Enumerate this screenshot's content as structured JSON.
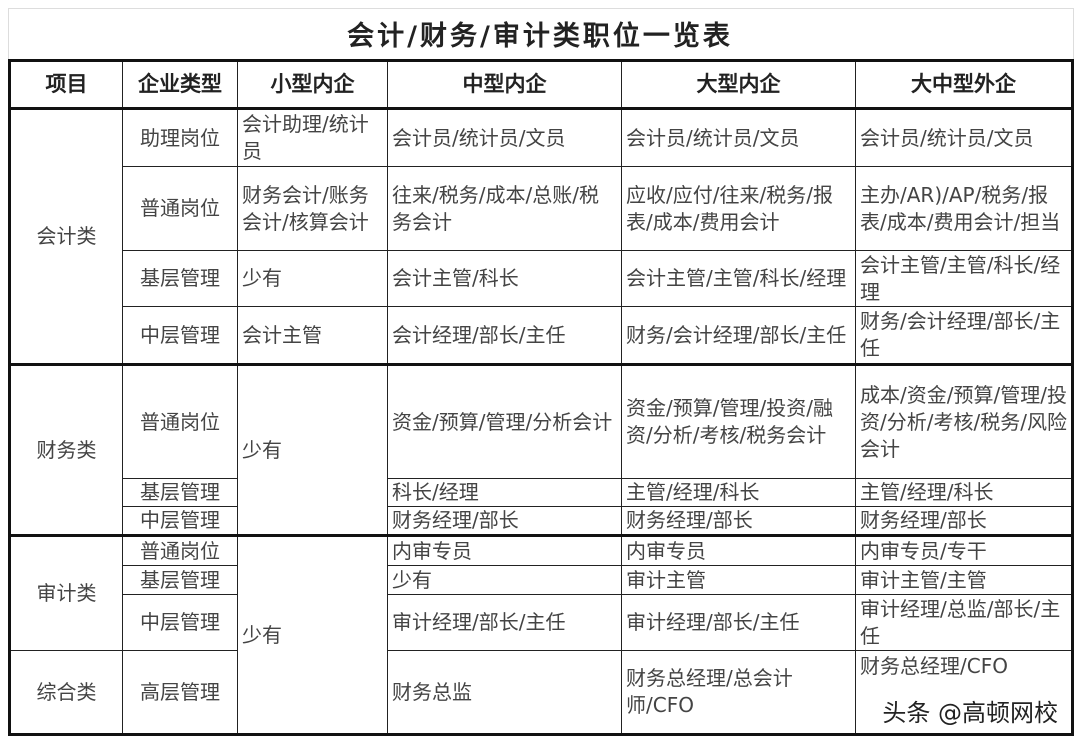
{
  "title": "会计/财务/审计类职位一览表",
  "headers": [
    "项目",
    "企业类型",
    "小型内企",
    "中型内企",
    "大型内企",
    "大中型外企"
  ],
  "categories": {
    "accounting": "会计类",
    "finance": "财务类",
    "audit": "审计类",
    "general": "综合类"
  },
  "rows": [
    {
      "type": "助理岗位",
      "small": "会计助理/统计员",
      "mid": "会计员/统计员/文员",
      "large": "会计员/统计员/文员",
      "foreign": "会计员/统计员/文员"
    },
    {
      "type": "普通岗位",
      "small": "财务会计/账务会计/核算会计",
      "mid": "往来/税务/成本/总账/税务会计",
      "large": "应收/应付/往来/税务/报表/成本/费用会计",
      "foreign": "主办/AR)/AP/税务/报表/成本/费用会计/担当"
    },
    {
      "type": "基层管理",
      "small": "少有",
      "mid": "会计主管/科长",
      "large": "会计主管/主管/科长/经理",
      "foreign": "会计主管/主管/科长/经理"
    },
    {
      "type": "中层管理",
      "small": "会计主管",
      "mid": "会计经理/部长/主任",
      "large": "财务/会计经理/部长/主任",
      "foreign": "财务/会计经理/部长/主任"
    },
    {
      "type": "普通岗位",
      "small": "少有",
      "mid": "资金/预算/管理/分析会计",
      "large": "资金/预算/管理/投资/融资/分析/考核/税务会计",
      "foreign": "成本/资金/预算/管理/投资/分析/考核/税务/风险会计"
    },
    {
      "type": "基层管理",
      "mid": "科长/经理",
      "large": "主管/经理/科长",
      "foreign": "主管/经理/科长"
    },
    {
      "type": "中层管理",
      "mid": "财务经理/部长",
      "large": "财务经理/部长",
      "foreign": "财务经理/部长"
    },
    {
      "type": "普通岗位",
      "small": "少有",
      "mid": "内审专员",
      "large": "内审专员",
      "foreign": "内审专员/专干"
    },
    {
      "type": "基层管理",
      "mid": "少有",
      "large": "审计主管",
      "foreign": "审计主管/主管"
    },
    {
      "type": "中层管理",
      "mid": "审计经理/部长/主任",
      "large": "审计经理/部长/主任",
      "foreign": "审计经理/总监/部长/主任"
    },
    {
      "type": "高层管理",
      "mid": "财务总监",
      "large": "财务总经理/总会计师/CFO",
      "foreign": "财务总经理/CFO"
    }
  ],
  "watermark": "头条 @高顿网校"
}
